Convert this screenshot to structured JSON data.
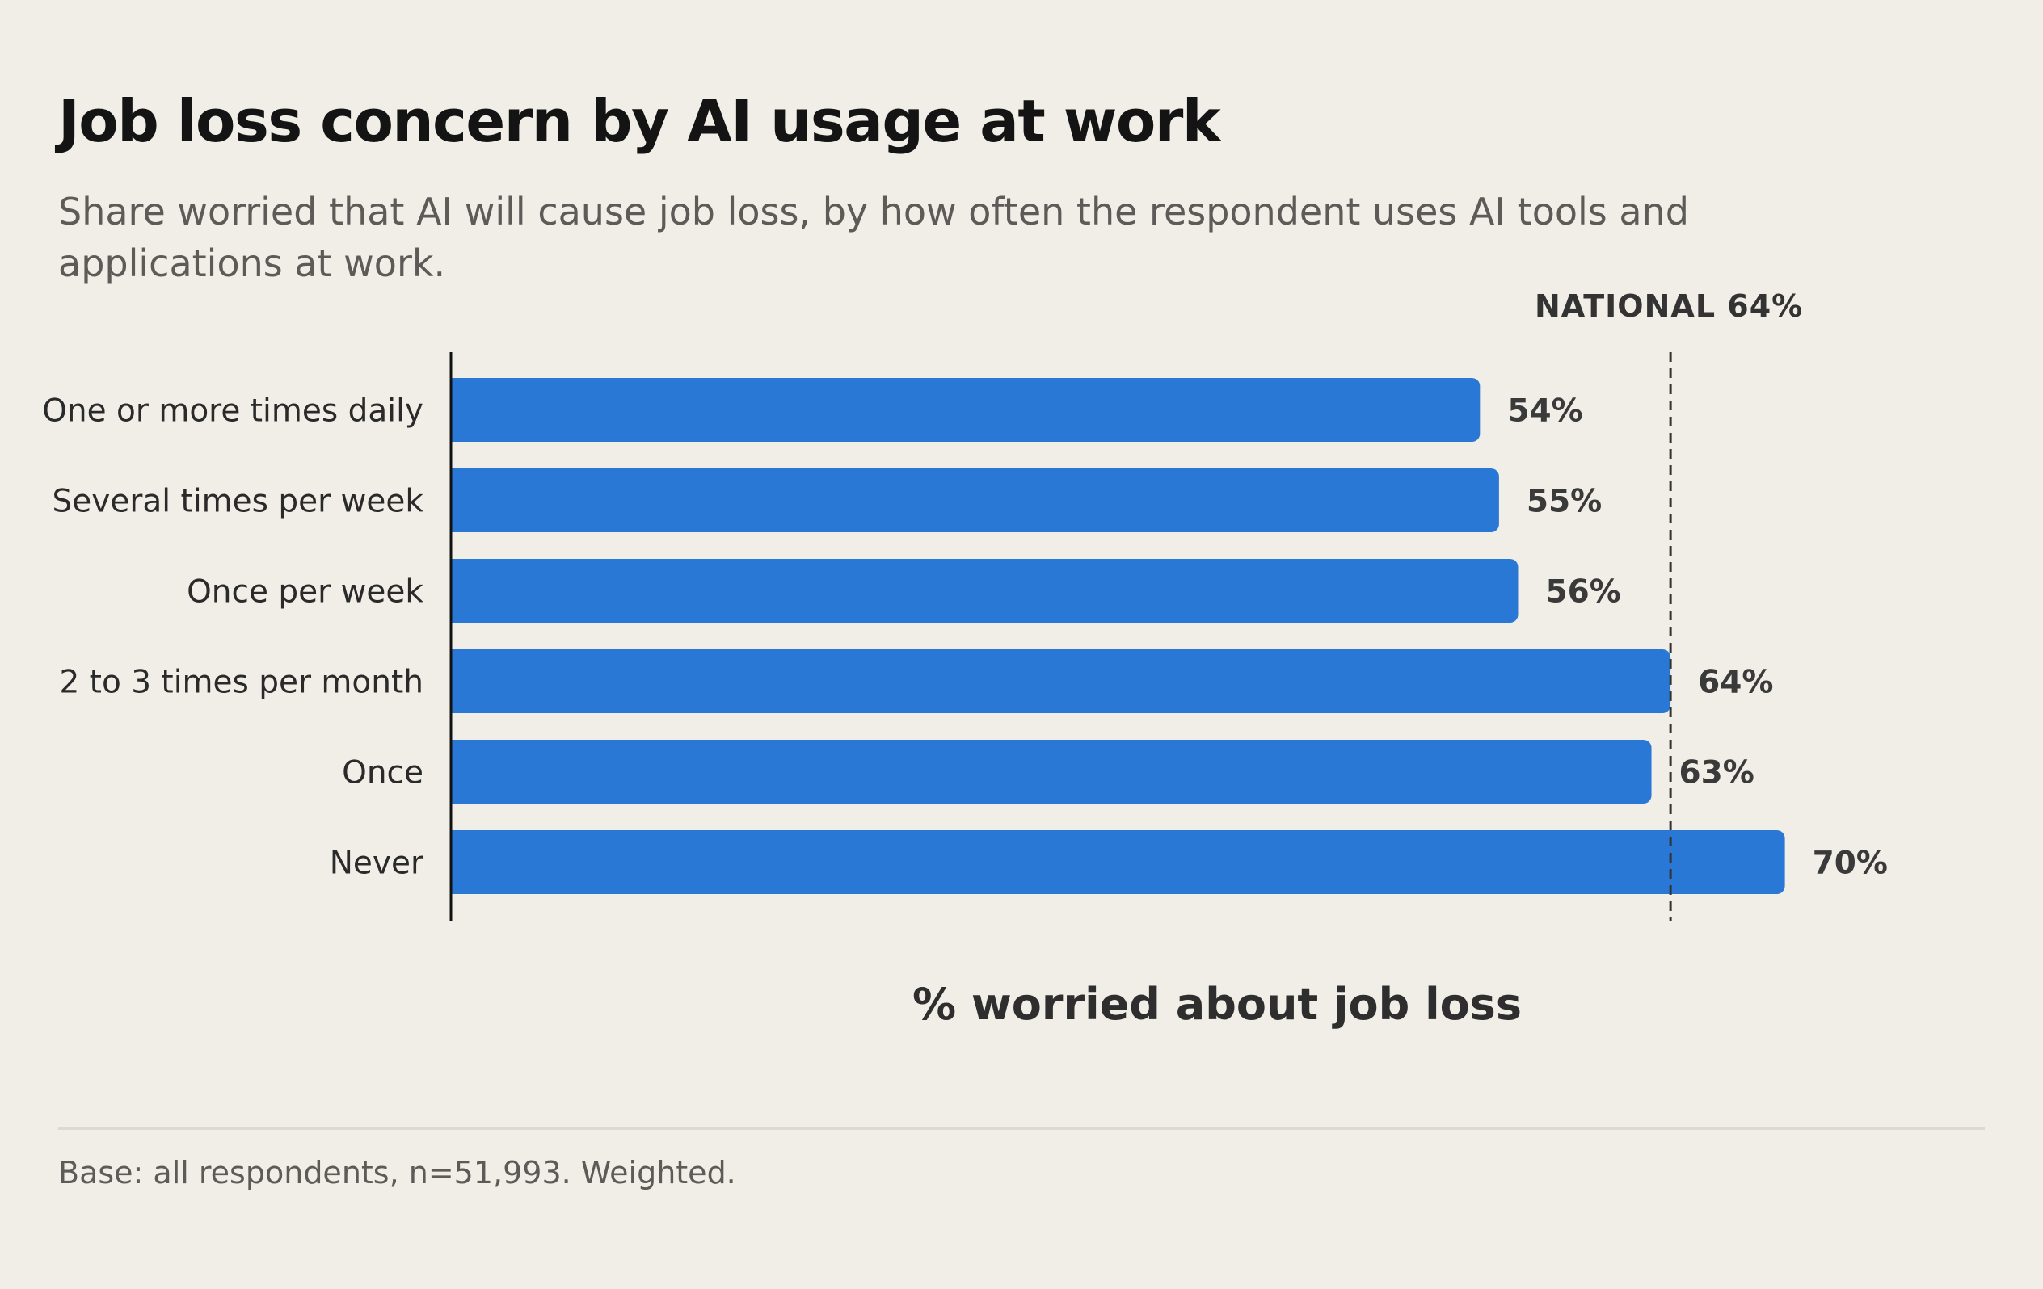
{
  "title": "Job loss concern by AI usage at work",
  "subtitle": "Share worried that AI will cause job loss, by how often the respondent uses AI tools and applications at work.",
  "footnote": "Base: all respondents, n=51,993. Weighted.",
  "colors": {
    "bar": "#2a78d6",
    "background": "#f1eee7",
    "reference_line": "#333333"
  },
  "chart_data": {
    "type": "bar",
    "orientation": "horizontal",
    "categories": [
      "One or more times daily",
      "Several times per week",
      "Once per week",
      "2 to 3 times per month",
      "Once",
      "Never"
    ],
    "values": [
      54,
      55,
      56,
      64,
      63,
      70
    ],
    "value_labels": [
      "54%",
      "55%",
      "56%",
      "64%",
      "63%",
      "70%"
    ],
    "xlabel": "% worried about job loss",
    "xlim": [
      0,
      70
    ],
    "grid": false,
    "reference_line": {
      "value": 64,
      "label": "NATIONAL 64%"
    }
  }
}
